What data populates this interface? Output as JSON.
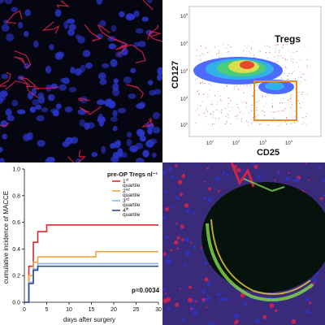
{
  "panels": {
    "flow": {
      "gate_label": "Tregs",
      "ylabel": "CD127",
      "xlabel": "CD25",
      "y_ticks": [
        {
          "base": "10",
          "exp": "5"
        },
        {
          "base": "10",
          "exp": "4"
        },
        {
          "base": "10",
          "exp": "3"
        },
        {
          "base": "10",
          "exp": "2"
        },
        {
          "base": "10",
          "exp": "1"
        }
      ],
      "x_ticks": [
        {
          "base": "10",
          "exp": "1"
        },
        {
          "base": "10",
          "exp": "2"
        },
        {
          "base": "10",
          "exp": "3"
        },
        {
          "base": "10",
          "exp": "4"
        }
      ],
      "gate_color": "#ef8a22"
    },
    "microscopy": {
      "nuclei_color": "#2a36c8",
      "fiber_color": "#e0224a",
      "green_color": "#7fd34a"
    }
  },
  "chart_data": {
    "type": "line",
    "step": true,
    "xlabel": "days after surgery",
    "ylabel": "cumulative incidence of MACCE",
    "xlim": [
      0,
      30
    ],
    "ylim": [
      0,
      1.0
    ],
    "x_ticks": [
      "0",
      "5",
      "10",
      "15",
      "20",
      "25",
      "30"
    ],
    "y_ticks": [
      "0.0",
      "0.2",
      "0.4",
      "0.6",
      "0.8",
      "1.0"
    ],
    "legend_title": "pre-OP Tregs nl⁻¹",
    "legend_position": "top-right",
    "p_value_text": "p=0.0034",
    "series": [
      {
        "name": "1st quartile",
        "ord_num": "1",
        "ord_sfx": "st",
        "word": "quartile",
        "color": "#d9282f",
        "points": [
          [
            0,
            0
          ],
          [
            1,
            0.27
          ],
          [
            2,
            0.45
          ],
          [
            3,
            0.53
          ],
          [
            5,
            0.58
          ],
          [
            30,
            0.58
          ]
        ]
      },
      {
        "name": "2nd quartile",
        "ord_num": "2",
        "ord_sfx": "nd",
        "word": "quartile",
        "color": "#f2a23a",
        "points": [
          [
            0,
            0
          ],
          [
            1,
            0.2
          ],
          [
            2,
            0.3
          ],
          [
            3,
            0.34
          ],
          [
            16,
            0.38
          ],
          [
            30,
            0.38
          ]
        ]
      },
      {
        "name": "3rd quartile",
        "ord_num": "3",
        "ord_sfx": "rd",
        "word": "quartile",
        "color": "#8fb4e6",
        "points": [
          [
            0,
            0
          ],
          [
            1,
            0.15
          ],
          [
            2,
            0.25
          ],
          [
            3,
            0.29
          ],
          [
            30,
            0.29
          ]
        ]
      },
      {
        "name": "4th quartile",
        "ord_num": "4",
        "ord_sfx": "th",
        "word": "quartile",
        "color": "#2b4a9a",
        "points": [
          [
            0,
            0
          ],
          [
            1,
            0.14
          ],
          [
            2,
            0.24
          ],
          [
            3,
            0.27
          ],
          [
            30,
            0.27
          ]
        ]
      }
    ]
  }
}
